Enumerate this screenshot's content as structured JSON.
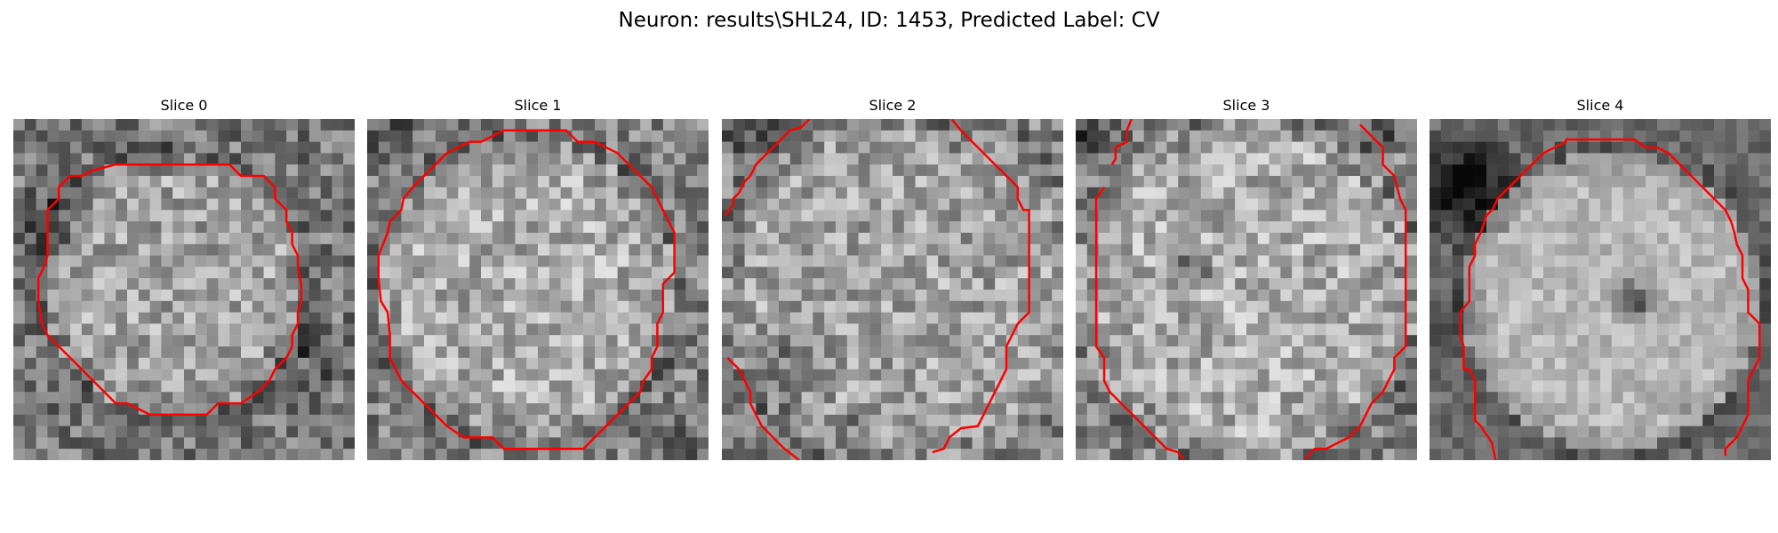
{
  "suptitle": "Neuron: results\\SHL24, ID: 1453, Predicted Label: CV",
  "contour_color": "#ff0000",
  "slices": [
    {
      "title": "Slice 0"
    },
    {
      "title": "Slice 1"
    },
    {
      "title": "Slice 2"
    },
    {
      "title": "Slice 3"
    },
    {
      "title": "Slice 4"
    }
  ]
}
